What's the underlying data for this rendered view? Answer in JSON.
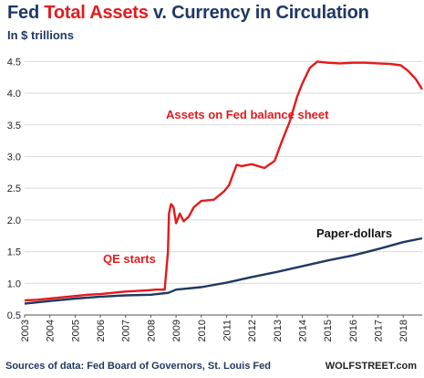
{
  "header": {
    "title_part1": "Fed ",
    "title_part2": "Total Assets",
    "title_part3": " v. Currency in Circulation",
    "subtitle": "In $ trillions"
  },
  "footer": {
    "source": "Sources of data: Fed Board of Governors, St. Louis Fed",
    "brand": "WOLFSTREET.com"
  },
  "colors": {
    "assets": "#e41a1c",
    "currency": "#1f3864",
    "grid": "#d9d9d9"
  },
  "chart_data": {
    "type": "line",
    "title": "Fed Total Assets v. Currency in Circulation",
    "ylabel": "In $ trillions",
    "xlim": [
      2003,
      2018.75
    ],
    "ylim": [
      0.5,
      4.75
    ],
    "x_ticks": [
      "2003",
      "2004",
      "2005",
      "2006",
      "2007",
      "2008",
      "2009",
      "2010",
      "2011",
      "2012",
      "2013",
      "2014",
      "2015",
      "2016",
      "2017",
      "2018"
    ],
    "y_ticks": [
      "0.5",
      "1.0",
      "1.5",
      "2.0",
      "2.5",
      "3.0",
      "3.5",
      "4.0",
      "4.5"
    ],
    "grid": "horizontal",
    "annotations": [
      {
        "text": "Assets on Fed balance sheet",
        "series": "assets"
      },
      {
        "text": "QE starts",
        "series": "assets"
      },
      {
        "text": "Paper-dollars",
        "series": "currency"
      }
    ],
    "series": [
      {
        "id": "assets",
        "x": [
          2003.0,
          2003.5,
          2004.0,
          2004.5,
          2005.0,
          2005.5,
          2006.0,
          2006.5,
          2007.0,
          2007.5,
          2007.9,
          2008.2,
          2008.55,
          2008.68,
          2008.72,
          2008.8,
          2008.9,
          2009.0,
          2009.15,
          2009.3,
          2009.5,
          2009.7,
          2010.0,
          2010.5,
          2010.9,
          2011.1,
          2011.4,
          2011.6,
          2012.0,
          2012.5,
          2012.9,
          2013.2,
          2013.5,
          2013.8,
          2014.0,
          2014.3,
          2014.6,
          2015.0,
          2015.5,
          2016.0,
          2016.5,
          2017.0,
          2017.5,
          2017.9,
          2018.2,
          2018.5,
          2018.75
        ],
        "y": [
          0.73,
          0.74,
          0.76,
          0.78,
          0.8,
          0.82,
          0.83,
          0.85,
          0.87,
          0.88,
          0.89,
          0.9,
          0.9,
          1.5,
          2.1,
          2.25,
          2.2,
          1.95,
          2.1,
          1.98,
          2.05,
          2.2,
          2.3,
          2.32,
          2.45,
          2.55,
          2.87,
          2.85,
          2.88,
          2.82,
          2.93,
          3.25,
          3.55,
          3.95,
          4.15,
          4.4,
          4.5,
          4.48,
          4.47,
          4.48,
          4.48,
          4.47,
          4.46,
          4.44,
          4.35,
          4.22,
          4.06
        ]
      },
      {
        "id": "currency",
        "x": [
          2003.0,
          2004.0,
          2005.0,
          2006.0,
          2007.0,
          2008.0,
          2008.7,
          2009.0,
          2010.0,
          2011.0,
          2012.0,
          2013.0,
          2014.0,
          2015.0,
          2016.0,
          2017.0,
          2018.0,
          2018.75
        ],
        "y": [
          0.68,
          0.72,
          0.76,
          0.79,
          0.81,
          0.82,
          0.85,
          0.9,
          0.94,
          1.01,
          1.1,
          1.18,
          1.27,
          1.36,
          1.44,
          1.54,
          1.65,
          1.71
        ]
      }
    ]
  }
}
